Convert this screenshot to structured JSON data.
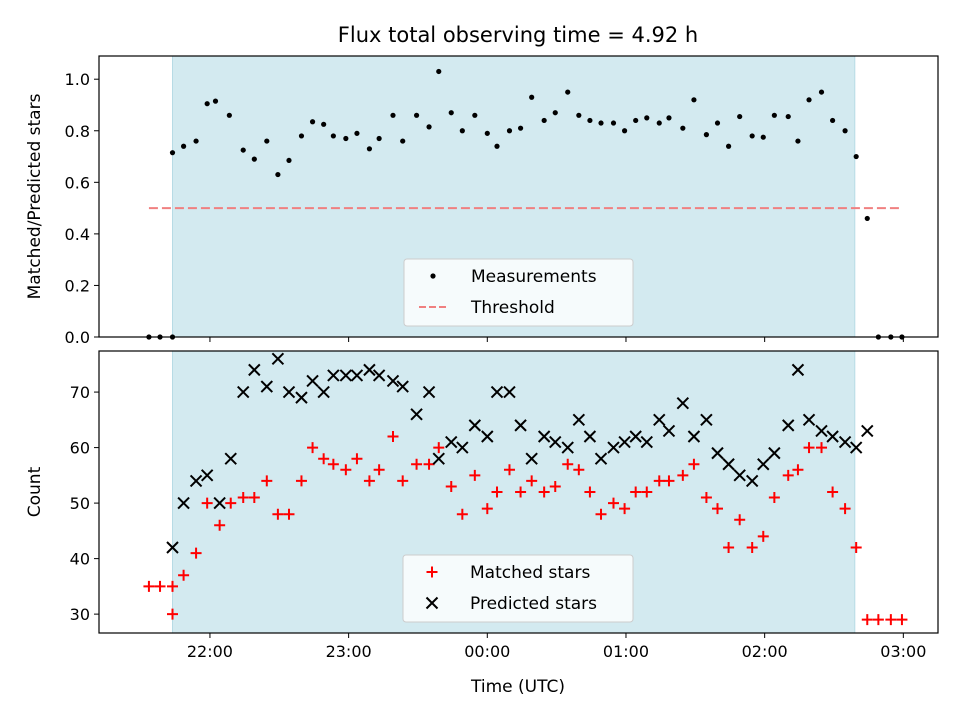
{
  "chart_data": {
    "title": "Flux total observing time = 4.92 h",
    "xlabel": "Time (UTC)",
    "x_unit": "hours UTC (values >= 24 are after midnight of the next day)",
    "x_ticks": [
      {
        "value": 22,
        "label": "22:00"
      },
      {
        "value": 23,
        "label": "23:00"
      },
      {
        "value": 24,
        "label": "00:00"
      },
      {
        "value": 25,
        "label": "01:00"
      },
      {
        "value": 26,
        "label": "02:00"
      },
      {
        "value": 27,
        "label": "03:00"
      }
    ],
    "xlim": [
      21.2,
      27.25
    ],
    "observing_window": [
      21.73,
      26.65
    ],
    "window_color": "#d3eaf0",
    "panels": [
      {
        "type": "scatter",
        "ylabel": "Matched/Predicted stars",
        "ylim": [
          0,
          1.09
        ],
        "y_ticks": [
          {
            "value": 0.0,
            "label": "0.0"
          },
          {
            "value": 0.2,
            "label": "0.2"
          },
          {
            "value": 0.4,
            "label": "0.4"
          },
          {
            "value": 0.6,
            "label": "0.6"
          },
          {
            "value": 0.8,
            "label": "0.8"
          },
          {
            "value": 1.0,
            "label": "1.0"
          }
        ],
        "legend_position": "lower center",
        "series": [
          {
            "name": "Measurements",
            "marker": "dot",
            "color": "#000000",
            "x": [
              21.56,
              21.64,
              21.73,
              21.73,
              21.81,
              21.9,
              21.98,
              22.04,
              22.14,
              22.24,
              22.32,
              22.41,
              22.49,
              22.57,
              22.66,
              22.74,
              22.82,
              22.89,
              22.98,
              23.06,
              23.15,
              23.22,
              23.32,
              23.39,
              23.49,
              23.58,
              23.65,
              23.74,
              23.82,
              23.91,
              24.0,
              24.07,
              24.16,
              24.24,
              24.32,
              24.41,
              24.49,
              24.58,
              24.66,
              24.74,
              24.82,
              24.91,
              24.99,
              25.07,
              25.15,
              25.24,
              25.31,
              25.41,
              25.49,
              25.58,
              25.66,
              25.74,
              25.82,
              25.91,
              25.99,
              26.07,
              26.17,
              26.24,
              26.32,
              26.41,
              26.49,
              26.58,
              26.66,
              26.74,
              26.82,
              26.91,
              26.99
            ],
            "y": [
              0.0,
              0.0,
              0.0,
              0.715,
              0.74,
              0.76,
              0.905,
              0.915,
              0.86,
              0.725,
              0.69,
              0.76,
              0.63,
              0.685,
              0.78,
              0.835,
              0.825,
              0.78,
              0.77,
              0.79,
              0.73,
              0.77,
              0.86,
              0.76,
              0.86,
              0.815,
              1.03,
              0.87,
              0.8,
              0.86,
              0.79,
              0.74,
              0.8,
              0.81,
              0.93,
              0.84,
              0.87,
              0.95,
              0.86,
              0.84,
              0.83,
              0.83,
              0.8,
              0.84,
              0.85,
              0.83,
              0.85,
              0.81,
              0.92,
              0.785,
              0.83,
              0.74,
              0.855,
              0.78,
              0.775,
              0.86,
              0.855,
              0.76,
              0.92,
              0.95,
              0.84,
              0.8,
              0.7,
              0.46,
              0.0,
              0.0,
              0.0
            ]
          },
          {
            "name": "Threshold",
            "marker": "dashed-line",
            "color": "#f08080",
            "x": [
              21.56,
              26.99
            ],
            "y": [
              0.5,
              0.5
            ]
          }
        ]
      },
      {
        "type": "scatter",
        "ylabel": "Count",
        "ylim": [
          26.6,
          77.4
        ],
        "y_ticks": [
          {
            "value": 30,
            "label": "30"
          },
          {
            "value": 40,
            "label": "40"
          },
          {
            "value": 50,
            "label": "50"
          },
          {
            "value": 60,
            "label": "60"
          },
          {
            "value": 70,
            "label": "70"
          }
        ],
        "legend_position": "lower center",
        "series": [
          {
            "name": "Matched stars",
            "marker": "plus",
            "color": "#ff0000",
            "x": [
              21.56,
              21.64,
              21.73,
              21.73,
              21.81,
              21.9,
              21.98,
              22.07,
              22.15,
              22.24,
              22.32,
              22.41,
              22.49,
              22.57,
              22.66,
              22.74,
              22.82,
              22.89,
              22.98,
              23.06,
              23.15,
              23.22,
              23.32,
              23.39,
              23.49,
              23.58,
              23.65,
              23.74,
              23.82,
              23.91,
              24.0,
              24.07,
              24.16,
              24.24,
              24.32,
              24.41,
              24.49,
              24.58,
              24.66,
              24.74,
              24.82,
              24.91,
              24.99,
              25.07,
              25.15,
              25.24,
              25.31,
              25.41,
              25.49,
              25.58,
              25.66,
              25.74,
              25.82,
              25.91,
              25.99,
              26.07,
              26.17,
              26.24,
              26.32,
              26.41,
              26.49,
              26.58,
              26.66,
              26.74,
              26.82,
              26.91,
              26.99
            ],
            "y": [
              35,
              35,
              35,
              30,
              37,
              41,
              50,
              46,
              50,
              51,
              51,
              54,
              48,
              48,
              54,
              60,
              58,
              57,
              56,
              58,
              54,
              56,
              62,
              54,
              57,
              57,
              60,
              53,
              48,
              55,
              49,
              52,
              56,
              52,
              54,
              52,
              53,
              57,
              56,
              52,
              48,
              50,
              49,
              52,
              52,
              54,
              54,
              55,
              57,
              51,
              49,
              42,
              47,
              42,
              44,
              51,
              55,
              56,
              60,
              60,
              52,
              49,
              42,
              29,
              29,
              29,
              29
            ]
          },
          {
            "name": "Predicted stars",
            "marker": "x",
            "color": "#000000",
            "x": [
              21.73,
              21.81,
              21.9,
              21.98,
              22.07,
              22.15,
              22.24,
              22.32,
              22.41,
              22.49,
              22.57,
              22.66,
              22.74,
              22.82,
              22.89,
              22.98,
              23.06,
              23.15,
              23.22,
              23.32,
              23.39,
              23.49,
              23.58,
              23.65,
              23.74,
              23.82,
              23.91,
              24.0,
              24.07,
              24.16,
              24.24,
              24.32,
              24.41,
              24.49,
              24.58,
              24.66,
              24.74,
              24.82,
              24.91,
              24.99,
              25.07,
              25.15,
              25.24,
              25.31,
              25.41,
              25.49,
              25.58,
              25.66,
              25.74,
              25.82,
              25.91,
              25.99,
              26.07,
              26.17,
              26.24,
              26.32,
              26.41,
              26.49,
              26.58,
              26.66,
              26.74
            ],
            "y": [
              42,
              50,
              54,
              55,
              50,
              58,
              70,
              74,
              71,
              76,
              70,
              69,
              72,
              70,
              73,
              73,
              73,
              74,
              73,
              72,
              71,
              66,
              70,
              58,
              61,
              60,
              64,
              62,
              70,
              70,
              64,
              58,
              62,
              61,
              60,
              65,
              62,
              58,
              60,
              61,
              62,
              61,
              65,
              63,
              68,
              62,
              65,
              59,
              57,
              55,
              54,
              57,
              59,
              64,
              74,
              65,
              63,
              62,
              61,
              60,
              63
            ]
          }
        ]
      }
    ]
  }
}
